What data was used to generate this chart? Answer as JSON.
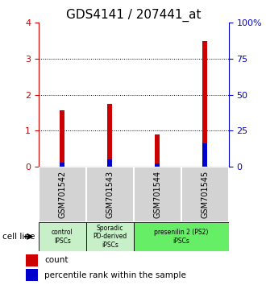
{
  "title": "GDS4141 / 207441_at",
  "samples": [
    "GSM701542",
    "GSM701543",
    "GSM701544",
    "GSM701545"
  ],
  "count_values": [
    1.57,
    1.75,
    0.9,
    3.5
  ],
  "percentile_values": [
    3.0,
    5.0,
    2.5,
    16.0
  ],
  "ylim_left": [
    0,
    4
  ],
  "ylim_right": [
    0,
    100
  ],
  "yticks_left": [
    0,
    1,
    2,
    3,
    4
  ],
  "yticks_right": [
    0,
    25,
    50,
    75,
    100
  ],
  "ytick_labels_right": [
    "0",
    "25",
    "50",
    "75",
    "100%"
  ],
  "bar_color_count": "#cc0000",
  "bar_color_pct": "#0000cc",
  "bar_width": 0.1,
  "grid_lines": [
    1,
    2,
    3
  ],
  "cell_line_label": "cell line",
  "legend_count_label": "count",
  "legend_pct_label": "percentile rank within the sample",
  "title_fontsize": 11,
  "axis_label_color_left": "#cc0000",
  "axis_label_color_right": "#0000cc",
  "sample_box_color": "#d3d3d3",
  "group_data": [
    {
      "label": "control\nIPSCs",
      "color": "#c8f0c8",
      "xmin": -0.5,
      "xmax": 0.5
    },
    {
      "label": "Sporadic\nPD-derived\niPSCs",
      "color": "#c8f0c8",
      "xmin": 0.5,
      "xmax": 1.5
    },
    {
      "label": "presenilin 2 (PS2)\niPSCs",
      "color": "#66ee66",
      "xmin": 1.5,
      "xmax": 3.5
    }
  ]
}
